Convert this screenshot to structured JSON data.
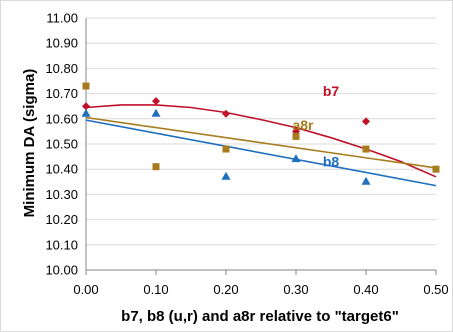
{
  "chart_data": {
    "type": "scatter",
    "title": "",
    "xlabel": "b7, b8 (u,r) and a8r relative to \"target6\"",
    "ylabel": "Minimum DA (sigma)",
    "xlim": [
      0.0,
      0.5
    ],
    "ylim": [
      10.0,
      11.0
    ],
    "x_ticks": [
      "0.00",
      "0.10",
      "0.20",
      "0.30",
      "0.40",
      "0.50"
    ],
    "y_ticks": [
      "10.00",
      "10.10",
      "10.20",
      "10.30",
      "10.40",
      "10.50",
      "10.60",
      "10.70",
      "10.80",
      "10.90",
      "11.00"
    ],
    "grid": true,
    "legend": "none",
    "series": [
      {
        "name": "b7",
        "color": "#c0102a",
        "marker": "diamond",
        "points": [
          [
            0.0,
            10.65
          ],
          [
            0.1,
            10.67
          ],
          [
            0.2,
            10.62
          ],
          [
            0.3,
            10.55
          ],
          [
            0.4,
            10.59
          ]
        ],
        "trendline": "polynomial",
        "trend_points": [
          [
            0.0,
            10.645
          ],
          [
            0.05,
            10.655
          ],
          [
            0.1,
            10.655
          ],
          [
            0.15,
            10.645
          ],
          [
            0.2,
            10.625
          ],
          [
            0.25,
            10.597
          ],
          [
            0.3,
            10.565
          ],
          [
            0.35,
            10.525
          ],
          [
            0.4,
            10.48
          ],
          [
            0.45,
            10.43
          ],
          [
            0.5,
            10.37
          ]
        ]
      },
      {
        "name": "a8r",
        "color": "#a67c1e",
        "marker": "square",
        "points": [
          [
            0.0,
            10.73
          ],
          [
            0.1,
            10.41
          ],
          [
            0.2,
            10.48
          ],
          [
            0.3,
            10.53
          ],
          [
            0.4,
            10.48
          ],
          [
            0.5,
            10.4
          ]
        ],
        "trendline": "linear",
        "trend_points": [
          [
            0.0,
            10.605
          ],
          [
            0.5,
            10.405
          ]
        ]
      },
      {
        "name": "b8",
        "color": "#1f6fbf",
        "marker": "triangle",
        "points": [
          [
            0.0,
            10.62
          ],
          [
            0.1,
            10.62
          ],
          [
            0.2,
            10.37
          ],
          [
            0.3,
            10.44
          ],
          [
            0.4,
            10.35
          ]
        ],
        "trendline": "linear",
        "trend_points": [
          [
            0.0,
            10.595
          ],
          [
            0.5,
            10.335
          ]
        ]
      }
    ]
  }
}
